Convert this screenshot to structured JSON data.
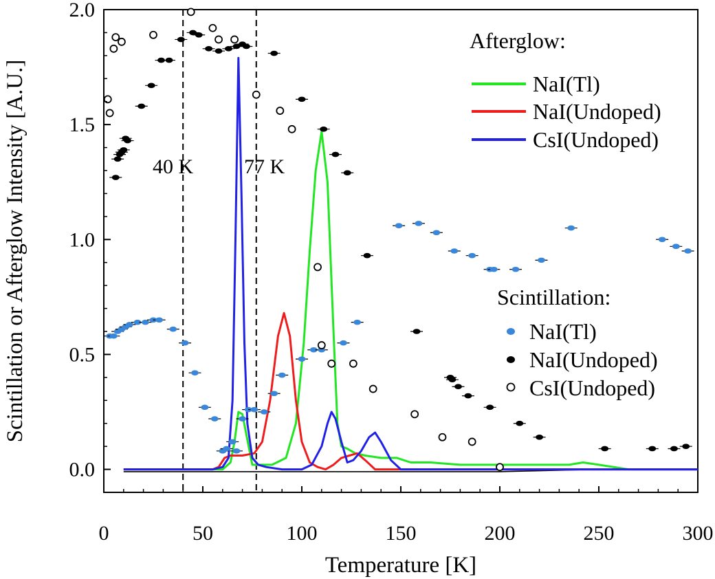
{
  "chart_data": {
    "type": "line",
    "xlabel": "Temperature [K]",
    "ylabel": "Scintillation or Afterglow Intensity [A.U.]",
    "xlim": [
      0,
      300
    ],
    "ylim": [
      -0.1,
      2.0
    ],
    "xticks": [
      0,
      50,
      100,
      150,
      200,
      250,
      300
    ],
    "xtick_labels": [
      "0",
      "50",
      "100",
      "150",
      "200",
      "250",
      "300"
    ],
    "yticks": [
      0.0,
      0.5,
      1.0,
      1.5,
      2.0
    ],
    "ytick_labels": [
      "0.0",
      "0.5",
      "1.0",
      "1.5",
      "2.0"
    ],
    "grid": false,
    "reference_lines": [
      {
        "x": 40,
        "label": "40 K"
      },
      {
        "x": 77,
        "label": "77 K"
      }
    ],
    "afterglow_title": "Afterglow:",
    "scintillation_title": "Scintillation:",
    "afterglow": [
      {
        "name": "NaI(Tl)",
        "color": "#22e622",
        "x": [
          10,
          60,
          64,
          66,
          68,
          70,
          72,
          75,
          78,
          85,
          92,
          97,
          101,
          104,
          107,
          110,
          113,
          116,
          118,
          120,
          123,
          127,
          132,
          140,
          148,
          155,
          165,
          180,
          200,
          220,
          235,
          242,
          250,
          265,
          300
        ],
        "y": [
          0.0,
          0.0,
          0.03,
          0.12,
          0.25,
          0.24,
          0.15,
          0.02,
          0.02,
          0.02,
          0.05,
          0.2,
          0.55,
          0.95,
          1.3,
          1.47,
          1.25,
          0.6,
          0.2,
          0.1,
          0.09,
          0.07,
          0.06,
          0.05,
          0.05,
          0.03,
          0.03,
          0.02,
          0.02,
          0.02,
          0.02,
          0.03,
          0.02,
          0.0,
          0.0
        ]
      },
      {
        "name": "NaI(Undoped)",
        "color": "#ee1c1c",
        "x": [
          10,
          55,
          58,
          61,
          64,
          70,
          76,
          80,
          84,
          88,
          91,
          94,
          97,
          100,
          104,
          108,
          112,
          116,
          120,
          124,
          128,
          132,
          137,
          150,
          300
        ],
        "y": [
          0.0,
          0.0,
          0.01,
          0.05,
          0.06,
          0.06,
          0.07,
          0.12,
          0.3,
          0.58,
          0.68,
          0.58,
          0.3,
          0.12,
          0.03,
          0.01,
          0.0,
          0.02,
          0.05,
          0.06,
          0.07,
          0.04,
          0.0,
          0.0,
          0.0
        ]
      },
      {
        "name": "CsI(Undoped)",
        "color": "#2121e6",
        "x": [
          10,
          50,
          55,
          60,
          63,
          65,
          66.5,
          68,
          69.5,
          71,
          72.5,
          75,
          78,
          82,
          90,
          100,
          105,
          110,
          113,
          115,
          117,
          120,
          123,
          126,
          130,
          134,
          137,
          140,
          145,
          150,
          300
        ],
        "y": [
          0.0,
          0.0,
          0.0,
          0.01,
          0.05,
          0.3,
          1.0,
          1.79,
          1.2,
          0.55,
          0.2,
          0.05,
          0.02,
          0.01,
          0.0,
          0.0,
          0.02,
          0.1,
          0.2,
          0.25,
          0.22,
          0.12,
          0.03,
          0.04,
          0.08,
          0.14,
          0.16,
          0.12,
          0.04,
          0.0,
          0.0
        ]
      }
    ],
    "baseline": {
      "color": "#000000",
      "x": [
        10,
        50,
        100,
        150,
        200,
        250,
        300
      ],
      "y": [
        -0.01,
        -0.01,
        -0.01,
        -0.01,
        -0.01,
        0.0,
        0.0
      ]
    },
    "scintillation": [
      {
        "name": "NaI(Tl)",
        "color": "#3a86d8",
        "marker": "filled",
        "x": [
          3,
          5,
          7,
          9,
          11,
          13,
          17,
          21,
          25,
          28,
          35,
          41,
          46,
          51,
          56,
          60,
          62,
          65,
          67,
          70,
          73,
          76,
          81,
          86,
          90,
          100,
          106,
          110,
          121,
          128,
          149,
          159,
          168,
          177,
          186,
          195,
          197,
          208,
          221,
          236,
          282,
          289,
          295
        ],
        "y": [
          0.58,
          0.58,
          0.6,
          0.61,
          0.62,
          0.63,
          0.64,
          0.64,
          0.65,
          0.65,
          0.61,
          0.55,
          0.42,
          0.27,
          0.22,
          0.08,
          0.09,
          0.12,
          0.08,
          0.22,
          0.26,
          0.26,
          0.25,
          0.33,
          0.41,
          0.48,
          0.52,
          0.52,
          0.55,
          0.64,
          1.06,
          1.07,
          1.03,
          0.95,
          0.93,
          0.87,
          0.87,
          0.87,
          0.91,
          1.05,
          1.0,
          0.97,
          0.95
        ]
      },
      {
        "name": "NaI(Undoped)",
        "color": "#000000",
        "marker": "filled",
        "x": [
          6,
          7,
          8,
          9,
          10,
          11,
          12,
          19,
          24,
          29,
          33,
          39,
          45,
          48,
          53,
          58,
          63,
          67,
          70,
          72,
          86,
          100,
          111,
          117,
          123,
          133,
          158,
          175,
          176,
          179,
          184,
          195,
          210,
          220,
          253,
          277,
          288,
          294
        ],
        "y": [
          1.27,
          1.35,
          1.37,
          1.38,
          1.39,
          1.44,
          1.43,
          1.58,
          1.67,
          1.78,
          1.78,
          1.87,
          1.9,
          1.89,
          1.83,
          1.82,
          1.83,
          1.84,
          1.85,
          1.84,
          1.81,
          1.61,
          1.48,
          1.37,
          1.29,
          0.93,
          0.6,
          0.4,
          0.39,
          0.36,
          0.32,
          0.27,
          0.2,
          0.14,
          0.09,
          0.09,
          0.09,
          0.1
        ]
      },
      {
        "name": "CsI(Undoped)",
        "color": "#000000",
        "marker": "open",
        "x": [
          2,
          3,
          5,
          6,
          9,
          25,
          44,
          55,
          58,
          66,
          77,
          89,
          95,
          108,
          110,
          115,
          126,
          136,
          157,
          171,
          186,
          200
        ],
        "y": [
          1.61,
          1.55,
          1.83,
          1.88,
          1.86,
          1.89,
          1.99,
          1.92,
          1.87,
          1.87,
          1.63,
          1.56,
          1.48,
          0.88,
          0.54,
          0.46,
          0.46,
          0.35,
          0.24,
          0.14,
          0.12,
          0.01
        ]
      }
    ]
  }
}
